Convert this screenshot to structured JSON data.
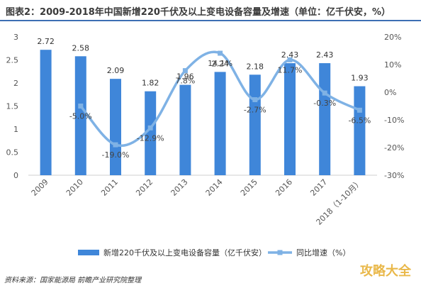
{
  "title": "图表2：2009-2018年中国新增220千伏及以上变电设备容量及增速（单位：亿千伏安，%）",
  "source": "资料来源：国家能源局 前瞻产业研究院整理",
  "watermark_text": "攻略大全",
  "colors": {
    "bar": "#3f86d9",
    "line": "#7fb2e5",
    "axis_text": "#555555",
    "grid": "#e6e6e6",
    "title_rule": "#3d6fb4"
  },
  "chart_data": {
    "type": "bar",
    "title": "图表2：2009-2018年中国新增220千伏及以上变电设备容量及增速（单位：亿千伏安，%）",
    "categories": [
      "2009",
      "2010",
      "2011",
      "2012",
      "2013",
      "2014",
      "2015",
      "2016",
      "2017",
      "2018（1-10月）"
    ],
    "series": [
      {
        "name": "新增220千伏及以上变电设备容量（亿千伏安）",
        "type": "bar",
        "axis": "left",
        "values": [
          2.72,
          2.58,
          2.09,
          1.82,
          1.96,
          2.24,
          2.18,
          2.43,
          2.43,
          1.93
        ]
      },
      {
        "name": "同比增速（%）",
        "type": "line",
        "axis": "right",
        "values": [
          null,
          -5.0,
          -19.0,
          -12.9,
          7.8,
          14.1,
          -2.7,
          11.7,
          -0.3,
          -6.5
        ]
      }
    ],
    "bar_labels": [
      "2.72",
      "2.58",
      "2.09",
      "1.82",
      "1.96",
      "2.24",
      "2.18",
      "2.43",
      "2.43",
      "1.93"
    ],
    "line_labels": [
      "",
      "-5.0%",
      "-19.0%",
      "-12.9%",
      "7.8%",
      "14.1%",
      "-2.7%",
      "11.7%",
      "-0.3%",
      "-6.5%"
    ],
    "ylim_left": [
      0,
      3
    ],
    "yticks_left": [
      "0",
      "0.5",
      "1",
      "1.5",
      "2",
      "2.5",
      "3"
    ],
    "ylim_right": [
      -30,
      20
    ],
    "yticks_right": [
      "-30%",
      "-20%",
      "-10%",
      "0%",
      "10%",
      "20%"
    ],
    "legend": [
      "新增220千伏及以上变电设备容量（亿千伏安）",
      "同比增速（%）"
    ],
    "legend_position": "bottom",
    "grid": false
  }
}
